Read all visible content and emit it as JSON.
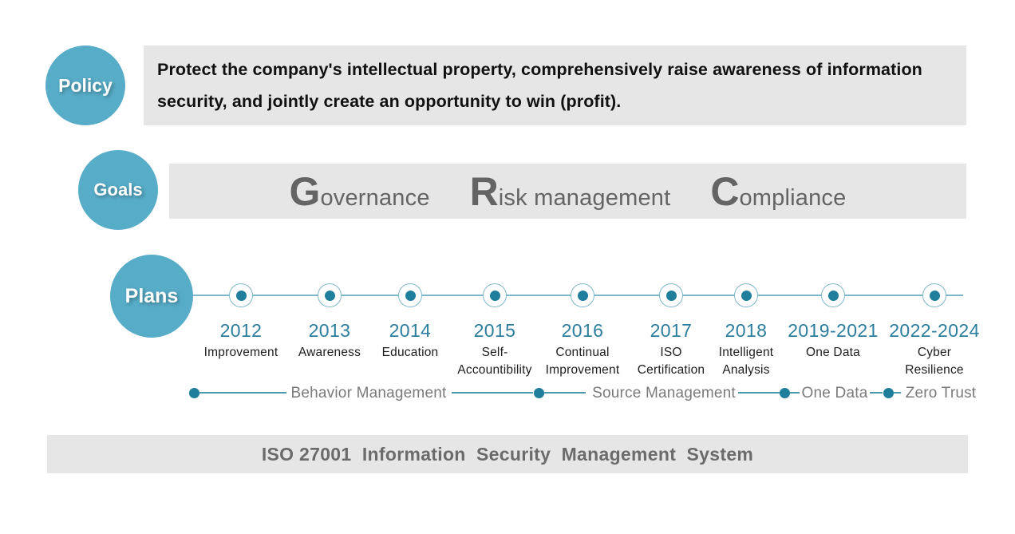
{
  "policy": {
    "badge": "Policy",
    "statement": "Protect the company's intellectual property, comprehensively raise awareness of information security, and jointly create an opportunity to win (profit)."
  },
  "goals": {
    "badge": "Goals",
    "items": [
      {
        "initial": "G",
        "rest": "overnance"
      },
      {
        "initial": "R",
        "rest": "isk management"
      },
      {
        "initial": "C",
        "rest": "ompliance"
      }
    ]
  },
  "plans": {
    "badge": "Plans",
    "milestones": [
      {
        "year": "2012",
        "lines": [
          "Improvement"
        ]
      },
      {
        "year": "2013",
        "lines": [
          "Awareness"
        ]
      },
      {
        "year": "2014",
        "lines": [
          "Education"
        ]
      },
      {
        "year": "2015",
        "lines": [
          "Self-",
          "Accountibility"
        ]
      },
      {
        "year": "2016",
        "lines": [
          "Continual",
          "Improvement"
        ]
      },
      {
        "year": "2017",
        "lines": [
          "ISO",
          "Certification"
        ]
      },
      {
        "year": "2018",
        "lines": [
          "Intelligent",
          "Analysis"
        ]
      },
      {
        "year": "2019-2021",
        "lines": [
          "One Data"
        ]
      },
      {
        "year": "2022-2024",
        "lines": [
          "Cyber",
          "Resilience"
        ]
      }
    ],
    "phases": [
      {
        "label": "Behavior Management"
      },
      {
        "label": "Source Management"
      },
      {
        "label": "One Data"
      },
      {
        "label": "Zero Trust"
      }
    ]
  },
  "footer": {
    "banner": "ISO 27001  Information  Security  Management  System"
  },
  "colors": {
    "badge_teal": "#57ACC7",
    "marker_teal_dark": "#1E7E9B",
    "timeline_teal_light": "#7FB7CA",
    "phase_line_teal": "#4B9AAF",
    "year_teal": "#2C7E9E",
    "bar_gray": "#E6E6E6",
    "goals_text_gray": "#646464",
    "footer_text_gray": "#6B6B6B",
    "phase_label_gray": "#7A7A7A",
    "body_text": "#111111"
  }
}
